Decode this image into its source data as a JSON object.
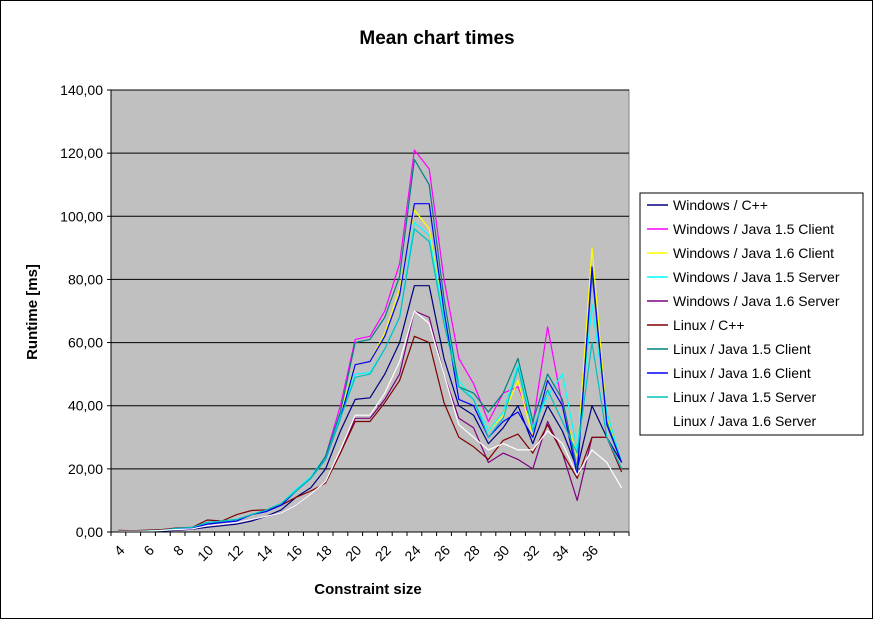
{
  "chart_data": {
    "type": "line",
    "title": "Mean chart times",
    "xlabel": "Constraint size",
    "ylabel": "Runtime [ms]",
    "ylim": [
      0,
      140
    ],
    "y_ticks": [
      "0,00",
      "20,00",
      "40,00",
      "60,00",
      "80,00",
      "100,00",
      "120,00",
      "140,00"
    ],
    "x": [
      4,
      5,
      6,
      7,
      8,
      9,
      10,
      11,
      12,
      13,
      14,
      15,
      16,
      17,
      18,
      19,
      20,
      21,
      22,
      23,
      24,
      25,
      26,
      27,
      28,
      29,
      30,
      31,
      32,
      33,
      34,
      35,
      36,
      37,
      38
    ],
    "x_tick_labels": [
      "4",
      "6",
      "8",
      "10",
      "12",
      "14",
      "16",
      "18",
      "20",
      "22",
      "24",
      "26",
      "28",
      "30",
      "32",
      "34",
      "36"
    ],
    "grid": "horizontal",
    "plot_background": "#c0c0c0",
    "legend_position": "right",
    "series": [
      {
        "name": "Windows / C++",
        "color": "#000080",
        "values": [
          0.2,
          0.1,
          0.2,
          0.3,
          0.6,
          0.9,
          1.5,
          2.0,
          2.5,
          3.5,
          5.0,
          7.0,
          11.0,
          14.0,
          20.0,
          32.0,
          42.0,
          42.5,
          50.0,
          60.0,
          78.0,
          78.0,
          55.0,
          40.0,
          37.0,
          28.0,
          33.0,
          40.0,
          28.0,
          40.0,
          32.0,
          20.0,
          40.0,
          30.0,
          22.0
        ]
      },
      {
        "name": "Windows / Java 1.5 Client",
        "color": "#ff00ff",
        "values": [
          0.2,
          0.2,
          0.3,
          0.5,
          1.0,
          1.2,
          2.5,
          3.0,
          3.5,
          5.5,
          6.5,
          8.5,
          13.0,
          17.0,
          24.0,
          40.0,
          61.0,
          62.0,
          70.0,
          85.0,
          121.0,
          115.0,
          80.0,
          55.0,
          47.0,
          35.0,
          44.0,
          46.0,
          34.0,
          65.0,
          40.0,
          20.0,
          82.0,
          36.0,
          22.0
        ]
      },
      {
        "name": "Windows / Java 1.6 Client",
        "color": "#ffff00",
        "values": [
          0.2,
          0.2,
          0.3,
          0.5,
          1.0,
          1.2,
          2.5,
          3.0,
          3.5,
          5.5,
          6.5,
          8.5,
          13.0,
          17.0,
          23.0,
          38.0,
          53.0,
          54.0,
          63.0,
          77.0,
          102.0,
          96.0,
          68.0,
          48.0,
          42.0,
          32.0,
          37.0,
          48.0,
          30.0,
          48.0,
          40.0,
          24.0,
          90.0,
          36.0,
          22.0
        ]
      },
      {
        "name": "Windows / Java 1.5 Server",
        "color": "#00ffff",
        "values": [
          0.3,
          0.2,
          0.4,
          0.6,
          1.2,
          1.5,
          3.0,
          3.5,
          4.0,
          5.5,
          7.0,
          9.0,
          13.5,
          17.5,
          24.0,
          37.0,
          50.0,
          50.5,
          58.0,
          68.0,
          98.0,
          94.0,
          68.0,
          48.0,
          42.0,
          32.0,
          38.0,
          53.0,
          33.0,
          43.0,
          50.0,
          26.0,
          72.0,
          38.0,
          22.0
        ]
      },
      {
        "name": "Windows / Java 1.6 Server",
        "color": "#800080",
        "values": [
          0.2,
          0.2,
          0.3,
          0.5,
          0.8,
          1.0,
          2.0,
          2.5,
          3.0,
          4.0,
          5.0,
          6.0,
          8.5,
          12.0,
          16.0,
          25.0,
          36.0,
          36.0,
          42.0,
          50.0,
          70.0,
          68.0,
          50.0,
          36.0,
          33.0,
          22.0,
          25.0,
          23.0,
          20.0,
          35.0,
          25.0,
          10.0,
          30.0,
          30.0,
          20.0
        ]
      },
      {
        "name": "Linux / C++",
        "color": "#800000",
        "values": [
          0.5,
          0.4,
          0.6,
          0.8,
          1.3,
          1.5,
          3.8,
          3.5,
          5.5,
          6.8,
          7.0,
          8.5,
          11.0,
          13.0,
          15.5,
          25.0,
          35.0,
          35.0,
          41.0,
          48.0,
          62.0,
          60.0,
          41.0,
          30.0,
          27.0,
          23.0,
          29.0,
          31.0,
          25.0,
          34.0,
          25.0,
          17.0,
          30.0,
          30.0,
          19.0
        ]
      },
      {
        "name": "Linux / Java 1.5 Client",
        "color": "#008080",
        "values": [
          0.2,
          0.2,
          0.3,
          0.5,
          1.0,
          1.2,
          2.5,
          3.0,
          3.5,
          5.5,
          6.5,
          8.5,
          13.0,
          17.0,
          24.0,
          38.0,
          60.0,
          61.0,
          68.0,
          81.0,
          118.0,
          110.0,
          74.0,
          46.0,
          44.0,
          38.0,
          44.0,
          55.0,
          35.0,
          50.0,
          42.0,
          20.0,
          82.0,
          35.0,
          22.0
        ]
      },
      {
        "name": "Linux / Java 1.6 Client",
        "color": "#0000ff",
        "values": [
          0.2,
          0.2,
          0.3,
          0.5,
          1.0,
          1.2,
          2.5,
          3.0,
          3.5,
          5.5,
          6.5,
          8.5,
          13.0,
          17.0,
          23.0,
          36.0,
          53.0,
          54.0,
          62.0,
          75.0,
          104.0,
          104.0,
          70.0,
          42.0,
          40.0,
          30.0,
          35.0,
          38.0,
          30.0,
          48.0,
          40.0,
          18.0,
          84.0,
          34.0,
          22.0
        ]
      },
      {
        "name": "Linux / Java 1.5 Server",
        "color": "#00c0c0",
        "values": [
          0.3,
          0.2,
          0.4,
          0.6,
          1.2,
          1.5,
          3.0,
          3.5,
          4.0,
          5.5,
          7.0,
          9.0,
          13.0,
          17.0,
          23.0,
          36.0,
          49.0,
          50.0,
          58.0,
          68.0,
          96.0,
          92.0,
          66.0,
          46.0,
          42.0,
          30.0,
          36.0,
          52.0,
          32.0,
          45.0,
          35.0,
          25.0,
          60.0,
          30.0,
          20.0
        ]
      },
      {
        "name": "Linux / Java 1.6 Server",
        "color": "#ffffff",
        "values": [
          0.2,
          0.2,
          0.3,
          0.5,
          0.8,
          1.0,
          2.0,
          2.5,
          3.0,
          4.0,
          5.0,
          6.0,
          8.5,
          12.0,
          16.0,
          26.0,
          37.0,
          37.0,
          44.0,
          54.0,
          70.0,
          66.0,
          50.0,
          34.0,
          30.0,
          26.0,
          28.0,
          26.0,
          26.0,
          32.0,
          28.0,
          18.0,
          26.0,
          22.0,
          14.0
        ]
      }
    ]
  }
}
